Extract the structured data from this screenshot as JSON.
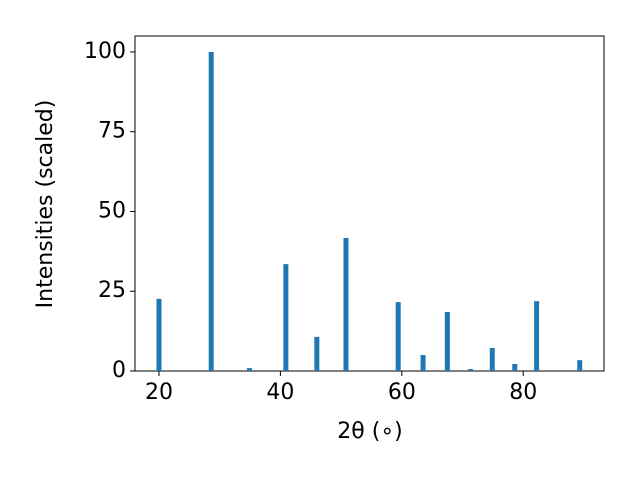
{
  "chart_data": {
    "type": "bar",
    "x_label": "2θ (∘)",
    "y_label": "Intensities (scaled)",
    "x": [
      20.0,
      28.6,
      34.9,
      40.9,
      46.0,
      50.8,
      59.4,
      63.5,
      67.5,
      71.3,
      74.9,
      78.6,
      82.2,
      89.3
    ],
    "values": [
      22.6,
      100,
      0.9,
      33.5,
      10.7,
      41.7,
      21.6,
      5.0,
      18.5,
      0.6,
      7.2,
      2.2,
      21.9,
      3.4
    ],
    "color": "#1f77b4",
    "xlim": [
      16.05,
      93.3
    ],
    "xticks": [
      20,
      40,
      60,
      80
    ],
    "ylim": [
      0,
      105
    ],
    "yticks": [
      0,
      25,
      50,
      75,
      100
    ]
  }
}
